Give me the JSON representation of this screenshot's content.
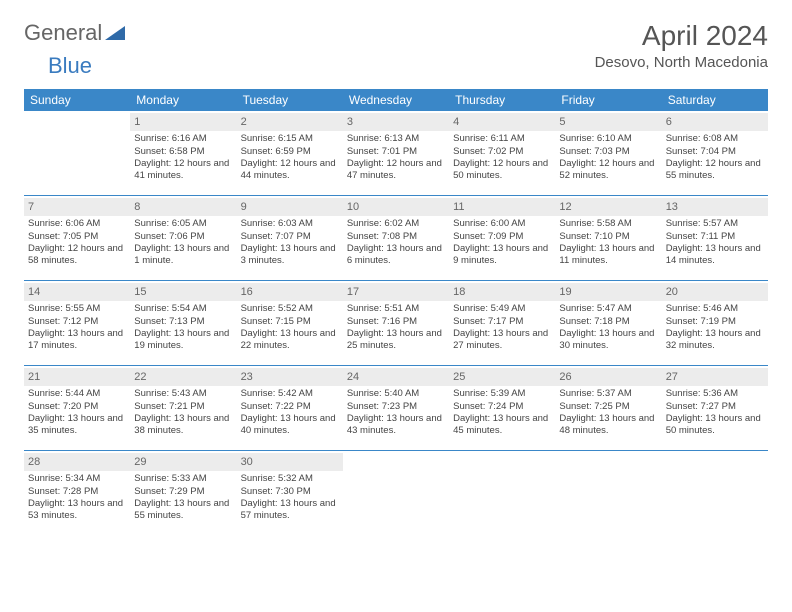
{
  "logo": {
    "text1": "General",
    "text2": "Blue"
  },
  "title": "April 2024",
  "location": "Desovo, North Macedonia",
  "colors": {
    "header_bg": "#3a87c8",
    "header_fg": "#ffffff",
    "daynum_bg": "#ececec",
    "row_border": "#3a87c8",
    "text": "#444444"
  },
  "weekdays": [
    "Sunday",
    "Monday",
    "Tuesday",
    "Wednesday",
    "Thursday",
    "Friday",
    "Saturday"
  ],
  "weeks": [
    [
      null,
      {
        "n": "1",
        "sr": "Sunrise: 6:16 AM",
        "ss": "Sunset: 6:58 PM",
        "dl": "Daylight: 12 hours and 41 minutes."
      },
      {
        "n": "2",
        "sr": "Sunrise: 6:15 AM",
        "ss": "Sunset: 6:59 PM",
        "dl": "Daylight: 12 hours and 44 minutes."
      },
      {
        "n": "3",
        "sr": "Sunrise: 6:13 AM",
        "ss": "Sunset: 7:01 PM",
        "dl": "Daylight: 12 hours and 47 minutes."
      },
      {
        "n": "4",
        "sr": "Sunrise: 6:11 AM",
        "ss": "Sunset: 7:02 PM",
        "dl": "Daylight: 12 hours and 50 minutes."
      },
      {
        "n": "5",
        "sr": "Sunrise: 6:10 AM",
        "ss": "Sunset: 7:03 PM",
        "dl": "Daylight: 12 hours and 52 minutes."
      },
      {
        "n": "6",
        "sr": "Sunrise: 6:08 AM",
        "ss": "Sunset: 7:04 PM",
        "dl": "Daylight: 12 hours and 55 minutes."
      }
    ],
    [
      {
        "n": "7",
        "sr": "Sunrise: 6:06 AM",
        "ss": "Sunset: 7:05 PM",
        "dl": "Daylight: 12 hours and 58 minutes."
      },
      {
        "n": "8",
        "sr": "Sunrise: 6:05 AM",
        "ss": "Sunset: 7:06 PM",
        "dl": "Daylight: 13 hours and 1 minute."
      },
      {
        "n": "9",
        "sr": "Sunrise: 6:03 AM",
        "ss": "Sunset: 7:07 PM",
        "dl": "Daylight: 13 hours and 3 minutes."
      },
      {
        "n": "10",
        "sr": "Sunrise: 6:02 AM",
        "ss": "Sunset: 7:08 PM",
        "dl": "Daylight: 13 hours and 6 minutes."
      },
      {
        "n": "11",
        "sr": "Sunrise: 6:00 AM",
        "ss": "Sunset: 7:09 PM",
        "dl": "Daylight: 13 hours and 9 minutes."
      },
      {
        "n": "12",
        "sr": "Sunrise: 5:58 AM",
        "ss": "Sunset: 7:10 PM",
        "dl": "Daylight: 13 hours and 11 minutes."
      },
      {
        "n": "13",
        "sr": "Sunrise: 5:57 AM",
        "ss": "Sunset: 7:11 PM",
        "dl": "Daylight: 13 hours and 14 minutes."
      }
    ],
    [
      {
        "n": "14",
        "sr": "Sunrise: 5:55 AM",
        "ss": "Sunset: 7:12 PM",
        "dl": "Daylight: 13 hours and 17 minutes."
      },
      {
        "n": "15",
        "sr": "Sunrise: 5:54 AM",
        "ss": "Sunset: 7:13 PM",
        "dl": "Daylight: 13 hours and 19 minutes."
      },
      {
        "n": "16",
        "sr": "Sunrise: 5:52 AM",
        "ss": "Sunset: 7:15 PM",
        "dl": "Daylight: 13 hours and 22 minutes."
      },
      {
        "n": "17",
        "sr": "Sunrise: 5:51 AM",
        "ss": "Sunset: 7:16 PM",
        "dl": "Daylight: 13 hours and 25 minutes."
      },
      {
        "n": "18",
        "sr": "Sunrise: 5:49 AM",
        "ss": "Sunset: 7:17 PM",
        "dl": "Daylight: 13 hours and 27 minutes."
      },
      {
        "n": "19",
        "sr": "Sunrise: 5:47 AM",
        "ss": "Sunset: 7:18 PM",
        "dl": "Daylight: 13 hours and 30 minutes."
      },
      {
        "n": "20",
        "sr": "Sunrise: 5:46 AM",
        "ss": "Sunset: 7:19 PM",
        "dl": "Daylight: 13 hours and 32 minutes."
      }
    ],
    [
      {
        "n": "21",
        "sr": "Sunrise: 5:44 AM",
        "ss": "Sunset: 7:20 PM",
        "dl": "Daylight: 13 hours and 35 minutes."
      },
      {
        "n": "22",
        "sr": "Sunrise: 5:43 AM",
        "ss": "Sunset: 7:21 PM",
        "dl": "Daylight: 13 hours and 38 minutes."
      },
      {
        "n": "23",
        "sr": "Sunrise: 5:42 AM",
        "ss": "Sunset: 7:22 PM",
        "dl": "Daylight: 13 hours and 40 minutes."
      },
      {
        "n": "24",
        "sr": "Sunrise: 5:40 AM",
        "ss": "Sunset: 7:23 PM",
        "dl": "Daylight: 13 hours and 43 minutes."
      },
      {
        "n": "25",
        "sr": "Sunrise: 5:39 AM",
        "ss": "Sunset: 7:24 PM",
        "dl": "Daylight: 13 hours and 45 minutes."
      },
      {
        "n": "26",
        "sr": "Sunrise: 5:37 AM",
        "ss": "Sunset: 7:25 PM",
        "dl": "Daylight: 13 hours and 48 minutes."
      },
      {
        "n": "27",
        "sr": "Sunrise: 5:36 AM",
        "ss": "Sunset: 7:27 PM",
        "dl": "Daylight: 13 hours and 50 minutes."
      }
    ],
    [
      {
        "n": "28",
        "sr": "Sunrise: 5:34 AM",
        "ss": "Sunset: 7:28 PM",
        "dl": "Daylight: 13 hours and 53 minutes."
      },
      {
        "n": "29",
        "sr": "Sunrise: 5:33 AM",
        "ss": "Sunset: 7:29 PM",
        "dl": "Daylight: 13 hours and 55 minutes."
      },
      {
        "n": "30",
        "sr": "Sunrise: 5:32 AM",
        "ss": "Sunset: 7:30 PM",
        "dl": "Daylight: 13 hours and 57 minutes."
      },
      null,
      null,
      null,
      null
    ]
  ]
}
